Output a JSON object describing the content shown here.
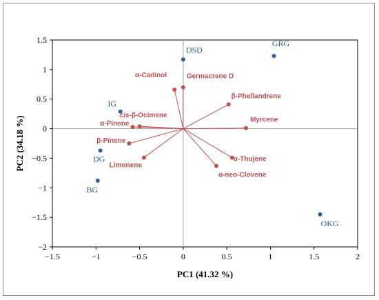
{
  "chart_data": {
    "type": "scatter",
    "title": "",
    "xlabel": "PC1 (41.32 %)",
    "ylabel": "PC2 (34.18 %)",
    "xlim": [
      -1.5,
      2
    ],
    "ylim": [
      -2,
      1.5
    ],
    "xticks": [
      "−1.5",
      "−1",
      "−0.5",
      "0",
      "0.5",
      "1",
      "1.5",
      "2"
    ],
    "yticks": [
      "−2",
      "−1.5",
      "−1",
      "−0.5",
      "0",
      "0.5",
      "1",
      "1.5"
    ],
    "grid": false,
    "legend": "none",
    "colors": {
      "samples": "#2e5f98",
      "loadings": "#c0504d",
      "zero_lines": "#a0a0a0"
    },
    "samples": [
      {
        "label": "DSD",
        "x": 0.0,
        "y": 1.17
      },
      {
        "label": "GRG",
        "x": 1.04,
        "y": 1.23
      },
      {
        "label": "IG",
        "x": -0.72,
        "y": 0.29
      },
      {
        "label": "DG",
        "x": -0.95,
        "y": -0.37
      },
      {
        "label": "BG",
        "x": -0.98,
        "y": -0.88
      },
      {
        "label": "OKG",
        "x": 1.57,
        "y": -1.45
      }
    ],
    "loadings": [
      {
        "label": "α-Cadinol",
        "x": -0.1,
        "y": 0.66
      },
      {
        "label": "Germacrene D",
        "x": 0.0,
        "y": 0.7
      },
      {
        "label": "β-Phellandrene",
        "x": 0.52,
        "y": 0.41
      },
      {
        "label": "Myrcene",
        "x": 0.72,
        "y": 0.01
      },
      {
        "label": "cis-β-Ocimene",
        "x": -0.5,
        "y": 0.04
      },
      {
        "label": "α-Pinene",
        "x": -0.58,
        "y": 0.03
      },
      {
        "label": "β-Pinene",
        "x": -0.62,
        "y": -0.25
      },
      {
        "label": "Limonene",
        "x": -0.45,
        "y": -0.49
      },
      {
        "label": "α-Thujene",
        "x": 0.56,
        "y": -0.49
      },
      {
        "label": "α-neo-Clovene",
        "x": 0.38,
        "y": -0.63
      }
    ]
  }
}
